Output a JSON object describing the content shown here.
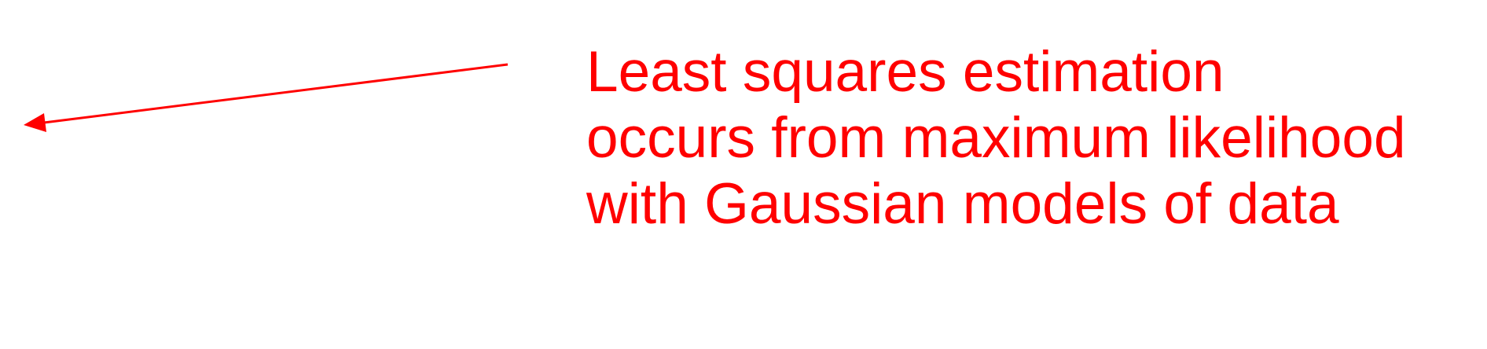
{
  "annotation": {
    "lines": [
      "Least squares estimation",
      "occurs from maximum likelihood",
      "with Gaussian models of data"
    ],
    "color": "#ff0000"
  },
  "arrow": {
    "color": "#ff0000",
    "direction": "left"
  },
  "background_color": "#ffffff"
}
